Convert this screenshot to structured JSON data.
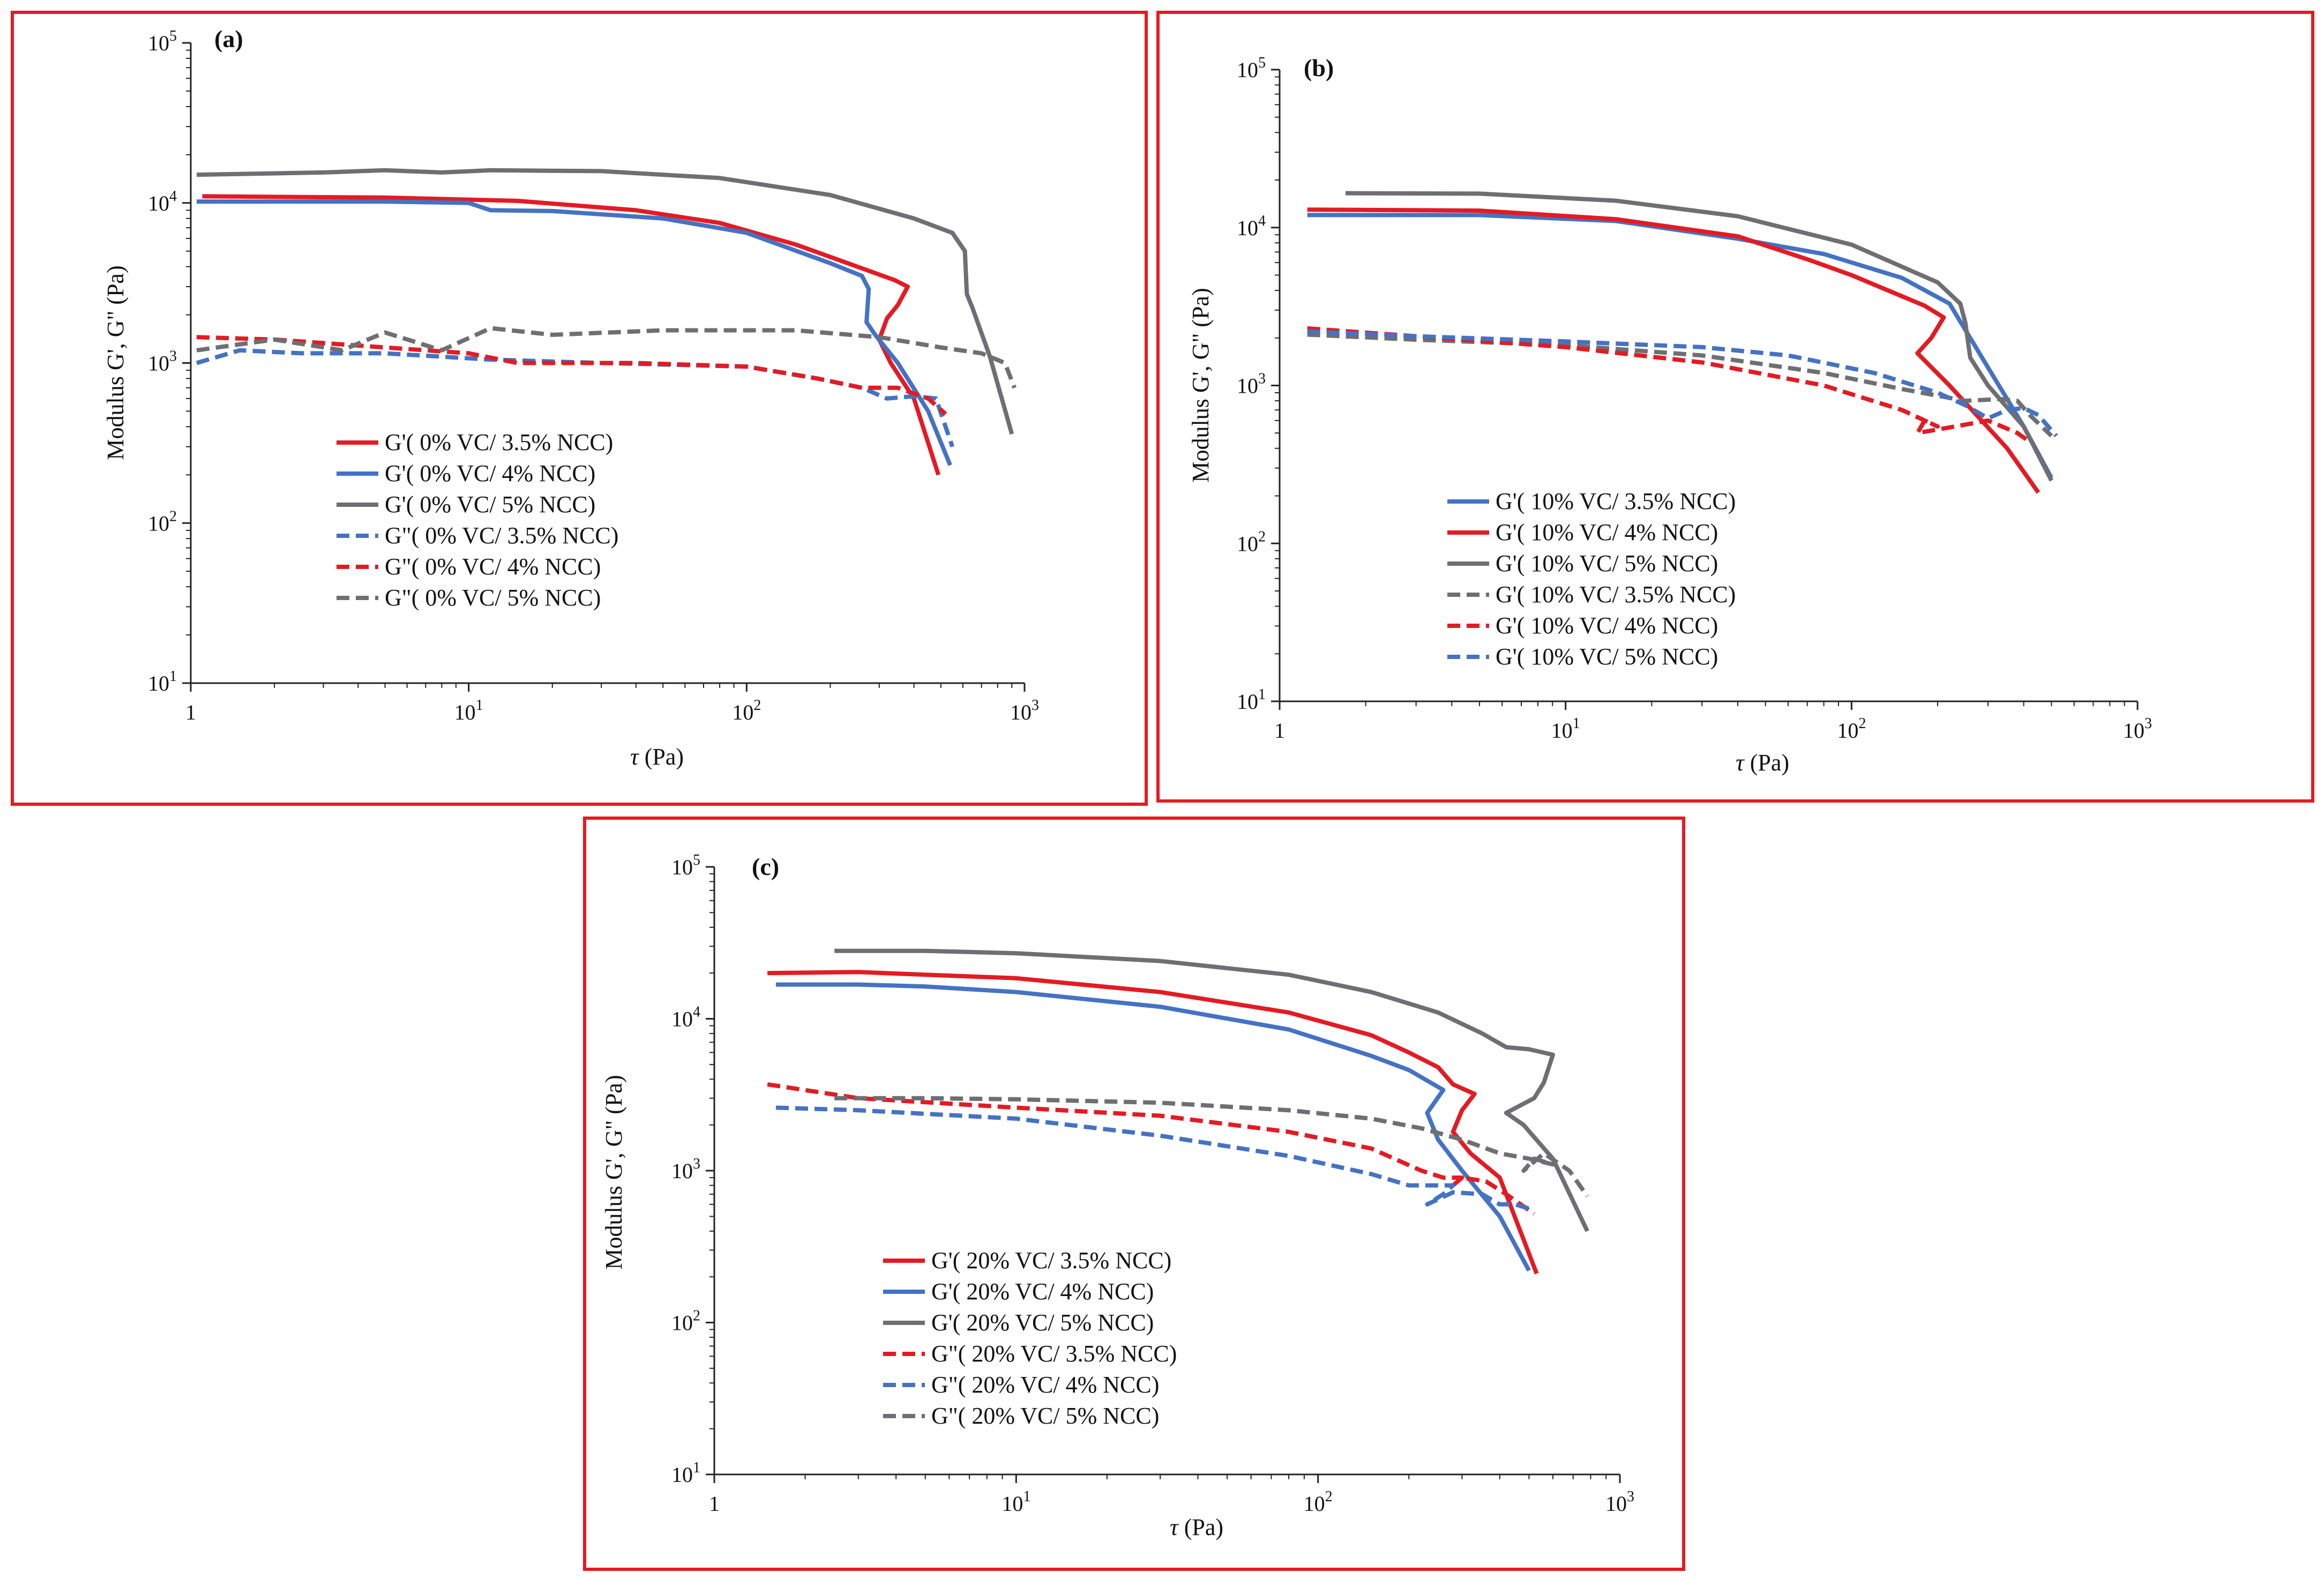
{
  "colors": {
    "red": "#e31b23",
    "blue": "#4472c4",
    "gray": "#6e6e73",
    "frame": "#e31b23"
  },
  "chart_data": [
    {
      "id": "a",
      "type": "line",
      "panel_label": "(a)",
      "xlabel_sym": "τ",
      "xlabel_unit": " (Pa)",
      "ylabel": "Modulus G', G\" (Pa)",
      "xscale": "log",
      "yscale": "log",
      "xlim": [
        1,
        1000
      ],
      "ylim": [
        10,
        100000
      ],
      "legend_position": "lower-left",
      "series": [
        {
          "name": "G'( 0% VC/ 3.5% NCC)",
          "color": "#e31b23",
          "dash": false,
          "x": [
            1.1,
            5,
            15,
            40,
            80,
            150,
            250,
            340,
            380,
            350,
            320,
            300,
            330,
            400,
            490
          ],
          "y": [
            11000,
            10800,
            10300,
            9000,
            7500,
            5500,
            4000,
            3300,
            3000,
            2300,
            1900,
            1400,
            1000,
            600,
            200
          ]
        },
        {
          "name": "G'( 0% VC/ 4% NCC)",
          "color": "#4472c4",
          "dash": false,
          "x": [
            1.05,
            5,
            10,
            12,
            20,
            50,
            100,
            200,
            260,
            275,
            270,
            290,
            350,
            450,
            540
          ],
          "y": [
            10200,
            10200,
            10000,
            9000,
            8900,
            8000,
            6500,
            4200,
            3500,
            2900,
            1800,
            1500,
            1000,
            500,
            230
          ]
        },
        {
          "name": "G'( 0% VC/ 5% NCC)",
          "color": "#6e6e73",
          "dash": false,
          "x": [
            1.05,
            3,
            5,
            8,
            12,
            30,
            80,
            200,
            400,
            550,
            610,
            620,
            650,
            750,
            900
          ],
          "y": [
            15000,
            15500,
            16000,
            15500,
            16000,
            15800,
            14300,
            11200,
            8000,
            6500,
            5000,
            2700,
            2200,
            1100,
            360
          ]
        },
        {
          "name": "G\"( 0% VC/ 3.5% NCC)",
          "color": "#4472c4",
          "dash": true,
          "x": [
            1.05,
            1.5,
            2.5,
            5,
            12,
            30,
            100,
            180,
            260,
            320,
            400,
            480,
            550
          ],
          "y": [
            1000,
            1200,
            1150,
            1150,
            1050,
            1000,
            950,
            800,
            700,
            600,
            620,
            600,
            300
          ]
        },
        {
          "name": "G\"( 0% VC/ 4% NCC)",
          "color": "#e31b23",
          "dash": true,
          "x": [
            1.05,
            2,
            5,
            10,
            15,
            40,
            100,
            180,
            260,
            350,
            450,
            520
          ],
          "y": [
            1450,
            1400,
            1250,
            1150,
            1000,
            1000,
            950,
            800,
            700,
            700,
            600,
            480
          ]
        },
        {
          "name": "G\"( 0% VC/ 5% NCC)",
          "color": "#6e6e73",
          "dash": true,
          "x": [
            1.05,
            2,
            3.5,
            5,
            8,
            12,
            20,
            50,
            150,
            300,
            500,
            700,
            850,
            920
          ],
          "y": [
            1200,
            1400,
            1200,
            1550,
            1200,
            1650,
            1500,
            1600,
            1600,
            1450,
            1250,
            1150,
            1000,
            700
          ]
        }
      ]
    },
    {
      "id": "b",
      "type": "line",
      "panel_label": "(b)",
      "xlabel_sym": "τ",
      "xlabel_unit": " (Pa)",
      "ylabel": "Modulus G', G\" (Pa)",
      "xscale": "log",
      "yscale": "log",
      "xlim": [
        1,
        1000
      ],
      "ylim": [
        10,
        100000
      ],
      "legend_position": "lower-left",
      "series": [
        {
          "name": "G'( 10% VC/ 3.5% NCC)",
          "color": "#4472c4",
          "dash": false,
          "x": [
            1.25,
            5,
            15,
            40,
            80,
            150,
            220,
            260,
            300,
            400,
            500
          ],
          "y": [
            12000,
            12000,
            11000,
            8500,
            6800,
            4800,
            3300,
            2000,
            1300,
            550,
            260
          ]
        },
        {
          "name": "G'( 10% VC/ 4% NCC)",
          "color": "#e31b23",
          "dash": false,
          "x": [
            1.25,
            5,
            15,
            40,
            70,
            100,
            180,
            210,
            190,
            170,
            220,
            350,
            450
          ],
          "y": [
            13000,
            12800,
            11300,
            8800,
            6300,
            5000,
            3200,
            2700,
            2000,
            1600,
            1000,
            400,
            210
          ]
        },
        {
          "name": "G'( 10% VC/ 5% NCC)",
          "color": "#6e6e73",
          "dash": false,
          "x": [
            1.7,
            5,
            15,
            40,
            100,
            200,
            240,
            250,
            260,
            300,
            400,
            500
          ],
          "y": [
            16500,
            16400,
            14800,
            11800,
            7800,
            4500,
            3300,
            2500,
            1500,
            1000,
            550,
            250
          ]
        },
        {
          "name": "G'( 10% VC/ 3.5% NCC)",
          "color": "#6e6e73",
          "dash": true,
          "x": [
            1.25,
            3,
            10,
            30,
            80,
            150,
            250,
            330,
            380,
            420,
            500
          ],
          "y": [
            2100,
            1950,
            1800,
            1550,
            1200,
            950,
            800,
            820,
            800,
            650,
            480
          ]
        },
        {
          "name": "G'( 10% VC/ 4% NCC)",
          "color": "#e31b23",
          "dash": true,
          "x": [
            1.25,
            3,
            10,
            30,
            80,
            150,
            200,
            180,
            170,
            230,
            300,
            380,
            420
          ],
          "y": [
            2300,
            2050,
            1750,
            1400,
            1000,
            700,
            550,
            600,
            500,
            550,
            600,
            500,
            440
          ]
        },
        {
          "name": "G'( 10% VC/ 5% NCC)",
          "color": "#4472c4",
          "dash": true,
          "x": [
            1.25,
            3,
            10,
            30,
            60,
            120,
            200,
            250,
            300,
            350,
            400,
            450,
            520
          ],
          "y": [
            2200,
            2050,
            1900,
            1750,
            1550,
            1200,
            900,
            750,
            620,
            700,
            720,
            650,
            480
          ]
        }
      ]
    },
    {
      "id": "c",
      "type": "line",
      "panel_label": "(c)",
      "xlabel_sym": "τ",
      "xlabel_unit": " (Pa)",
      "ylabel": "Modulus G', G\" (Pa)",
      "xscale": "log",
      "yscale": "log",
      "xlim": [
        1,
        1000
      ],
      "ylim": [
        10,
        100000
      ],
      "legend_position": "lower-left",
      "series": [
        {
          "name": "G'( 20% VC/ 3.5% NCC)",
          "color": "#e31b23",
          "dash": false,
          "x": [
            1.5,
            3,
            5,
            10,
            30,
            80,
            150,
            200,
            250,
            280,
            330,
            300,
            280,
            320,
            400,
            530
          ],
          "y": [
            20000,
            20300,
            19500,
            18500,
            15000,
            11000,
            7800,
            6000,
            4800,
            3700,
            3200,
            2500,
            1800,
            1300,
            900,
            210
          ]
        },
        {
          "name": "G'( 20% VC/ 4% NCC)",
          "color": "#4472c4",
          "dash": false,
          "x": [
            1.6,
            3,
            5,
            10,
            30,
            80,
            150,
            200,
            260,
            230,
            250,
            300,
            400,
            500
          ],
          "y": [
            16800,
            16800,
            16300,
            15000,
            12000,
            8500,
            5700,
            4600,
            3400,
            2400,
            1600,
            1000,
            500,
            220
          ]
        },
        {
          "name": "G'( 20% VC/ 5% NCC)",
          "color": "#6e6e73",
          "dash": false,
          "x": [
            2.5,
            5,
            10,
            30,
            80,
            150,
            250,
            350,
            420,
            500,
            600,
            560,
            520,
            470,
            420,
            480,
            600,
            780
          ],
          "y": [
            28000,
            28000,
            27000,
            24000,
            19500,
            15000,
            11000,
            8000,
            6500,
            6300,
            5800,
            3800,
            3000,
            2700,
            2400,
            2000,
            1200,
            400
          ]
        },
        {
          "name": "G\"( 20% VC/ 3.5% NCC)",
          "color": "#e31b23",
          "dash": true,
          "x": [
            1.5,
            3,
            10,
            30,
            80,
            150,
            220,
            260,
            300,
            280,
            300,
            360,
            420,
            520
          ],
          "y": [
            3700,
            3000,
            2600,
            2300,
            1800,
            1400,
            1000,
            900,
            900,
            800,
            900,
            850,
            700,
            520
          ]
        },
        {
          "name": "G\"( 20% VC/ 4% NCC)",
          "color": "#4472c4",
          "dash": true,
          "x": [
            1.6,
            3,
            10,
            30,
            80,
            150,
            200,
            250,
            280,
            260,
            230,
            280,
            350,
            400,
            450,
            520
          ],
          "y": [
            2600,
            2500,
            2200,
            1700,
            1250,
            950,
            800,
            800,
            800,
            700,
            600,
            720,
            700,
            600,
            600,
            550
          ]
        },
        {
          "name": "G\"( 20% VC/ 5% NCC)",
          "color": "#6e6e73",
          "dash": true,
          "x": [
            2.5,
            5,
            10,
            30,
            80,
            150,
            220,
            300,
            400,
            500,
            600,
            520,
            480,
            560,
            680,
            780
          ],
          "y": [
            3000,
            3000,
            2950,
            2800,
            2500,
            2200,
            1900,
            1600,
            1300,
            1200,
            1100,
            1200,
            1000,
            1300,
            1000,
            680
          ]
        }
      ]
    }
  ]
}
